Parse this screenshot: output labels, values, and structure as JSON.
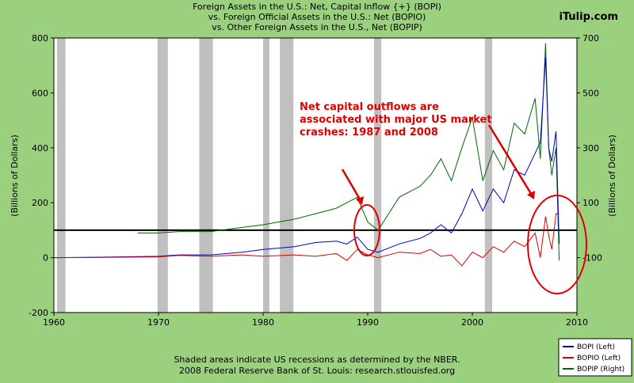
{
  "header": {
    "title_lines": [
      "Foreign Assets in the U.S.: Net, Capital Inflow {+} (BOPI)",
      "vs.  Foreign Official Assets in the U.S.: Net (BOPIO)",
      "vs.  Other Foreign Assets in the U.S., Net (BOPIP)"
    ],
    "brand": "iTulip.com"
  },
  "footer": {
    "line1": "Shaded areas indicate US recessions as determined by the NBER.",
    "line2": "2008 Federal Reserve Bank of St. Louis: research.stlouisfed.org"
  },
  "annotation": {
    "lines": [
      "Net capital outflows are",
      "associated with major US market",
      "crashes: 1987 and 2008"
    ]
  },
  "colors": {
    "background": "#9bd07f",
    "plot_bg": "#ffffff",
    "recession": "#c0c0c0",
    "bopi": "#0000cc",
    "bopio": "#dd0000",
    "bopip": "#006600",
    "annotation": "#dd0000"
  },
  "chart_data": {
    "type": "line",
    "ylabel_left": "(Billions of Dollars)",
    "ylabel_right": "(Billions of Dollars)",
    "xlim": [
      1960,
      2010
    ],
    "ylim_left": [
      -200,
      800
    ],
    "ylim_right": [
      -300,
      700
    ],
    "x_ticks": [
      1960,
      1970,
      1980,
      1990,
      2000,
      2010
    ],
    "y_ticks_left": [
      -200,
      0,
      200,
      400,
      600,
      800
    ],
    "y_ticks_right": [
      -100,
      100,
      300,
      500,
      700
    ],
    "reference_line_y_left": 100,
    "recessions": [
      [
        1960.3,
        1961.1
      ],
      [
        1969.9,
        1970.9
      ],
      [
        1973.9,
        1975.2
      ],
      [
        1980.0,
        1980.6
      ],
      [
        1981.6,
        1982.9
      ],
      [
        1990.6,
        1991.3
      ],
      [
        2001.2,
        2001.9
      ]
    ],
    "legend": {
      "placement": "bottom-right",
      "entries": [
        "BOPI (Left)",
        "BOPIO (Left)",
        "BOPIP (Right)"
      ]
    },
    "series": [
      {
        "name": "BOPI (Left)",
        "axis": "left",
        "x": [
          1960,
          1965,
          1970,
          1972,
          1975,
          1978,
          1980,
          1983,
          1985,
          1987,
          1988,
          1989,
          1990,
          1991,
          1993,
          1995,
          1996,
          1997,
          1998,
          1999,
          2000,
          2001,
          2002,
          2003,
          2004,
          2005,
          2006,
          2006.5,
          2007,
          2007.3,
          2007.6,
          2008,
          2008.3
        ],
        "y": [
          0,
          2,
          5,
          10,
          10,
          20,
          30,
          40,
          55,
          60,
          50,
          75,
          30,
          20,
          50,
          70,
          90,
          120,
          90,
          160,
          250,
          170,
          250,
          200,
          320,
          300,
          380,
          420,
          730,
          400,
          350,
          460,
          50
        ]
      },
      {
        "name": "BOPIO (Left)",
        "axis": "left",
        "x": [
          1960,
          1965,
          1970,
          1972,
          1975,
          1978,
          1980,
          1983,
          1985,
          1987,
          1988,
          1989,
          1990,
          1991,
          1993,
          1995,
          1996,
          1997,
          1998,
          1999,
          2000,
          2001,
          2002,
          2003,
          2004,
          2005,
          2006,
          2006.5,
          2007,
          2007.3,
          2007.6,
          2008,
          2008.3
        ],
        "y": [
          0,
          1,
          3,
          8,
          5,
          10,
          5,
          10,
          5,
          15,
          -10,
          30,
          10,
          0,
          20,
          15,
          30,
          5,
          10,
          -30,
          20,
          0,
          40,
          20,
          60,
          40,
          90,
          0,
          150,
          80,
          30,
          160,
          160
        ]
      },
      {
        "name": "BOPIP (Right)",
        "axis": "right",
        "x": [
          1968,
          1970,
          1972,
          1975,
          1978,
          1980,
          1983,
          1985,
          1987,
          1988,
          1989,
          1990,
          1991,
          1993,
          1995,
          1996,
          1997,
          1998,
          1999,
          2000,
          2001,
          2002,
          2003,
          2004,
          2005,
          2006,
          2006.5,
          2007,
          2007.3,
          2007.6,
          2008,
          2008.3
        ],
        "y": [
          -10,
          -10,
          -5,
          -5,
          10,
          20,
          40,
          60,
          80,
          100,
          120,
          30,
          0,
          120,
          160,
          200,
          260,
          180,
          300,
          410,
          180,
          290,
          220,
          390,
          350,
          480,
          260,
          680,
          300,
          200,
          300,
          -110
        ]
      }
    ]
  }
}
